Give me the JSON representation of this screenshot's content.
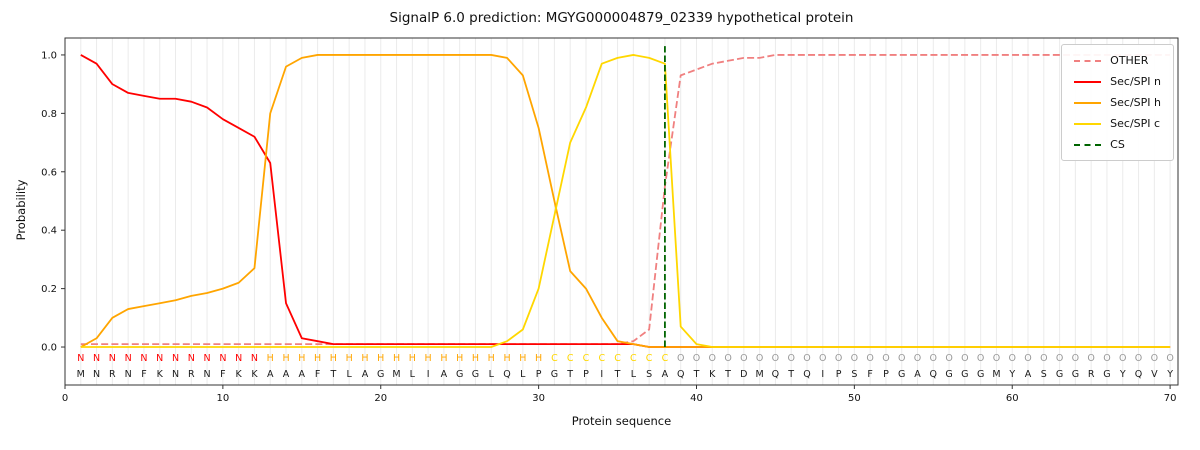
{
  "chart_data": {
    "type": "line",
    "title": "SignalP 6.0 prediction: MGYG000004879_02339 hypothetical protein",
    "xlabel": "Protein sequence",
    "ylabel": "Probability",
    "xlim": [
      0,
      70.5
    ],
    "ylim": [
      -0.13,
      1.058
    ],
    "xticks": [
      0,
      10,
      20,
      30,
      40,
      50,
      60,
      70
    ],
    "yticks": [
      0.0,
      0.2,
      0.4,
      0.6,
      0.8,
      1.0
    ],
    "grid": "light vertical gridline at every residue position",
    "legend_position": "top-right",
    "x_start": 1,
    "sequence": "MNRNFKNRNFKKAAAFTLAGMLIAGGLQLPGTPITLSAQTKTDMQTQIPSFPGAQGGGMYASGGRGYQVY",
    "regions": "NNNNNNNNNNNNHHHHHHHHHHHHHHHHHHCCCCCCCCOOOOOOOOOOOOOOOOOOOOOOOOOOOOOOOO",
    "region_colors": {
      "N": "#ff0000",
      "H": "#ffa500",
      "C": "#ffd700",
      "O": "#999999"
    },
    "sequence_color": "#1a1a1a",
    "series": [
      {
        "name": "OTHER",
        "color": "#f08080",
        "dashed": true,
        "values": [
          0.01,
          0.01,
          0.01,
          0.01,
          0.01,
          0.01,
          0.01,
          0.01,
          0.01,
          0.01,
          0.01,
          0.01,
          0.01,
          0.01,
          0.01,
          0.01,
          0.01,
          0.01,
          0.01,
          0.01,
          0.01,
          0.01,
          0.01,
          0.01,
          0.01,
          0.01,
          0.01,
          0.01,
          0.01,
          0.01,
          0.01,
          0.01,
          0.01,
          0.01,
          0.01,
          0.02,
          0.06,
          0.55,
          0.93,
          0.95,
          0.97,
          0.98,
          0.99,
          0.99,
          1.0,
          1.0,
          1.0,
          1.0,
          1.0,
          1.0,
          1.0,
          1.0,
          1.0,
          1.0,
          1.0,
          1.0,
          1.0,
          1.0,
          1.0,
          1.0,
          1.0,
          1.0,
          1.0,
          1.0,
          1.0,
          1.0,
          1.0,
          1.0,
          1.0,
          1.0
        ]
      },
      {
        "name": "Sec/SPI n",
        "color": "#ff0000",
        "dashed": false,
        "values": [
          1.0,
          0.97,
          0.9,
          0.87,
          0.86,
          0.85,
          0.85,
          0.84,
          0.82,
          0.78,
          0.75,
          0.72,
          0.63,
          0.15,
          0.03,
          0.02,
          0.01,
          0.01,
          0.01,
          0.01,
          0.01,
          0.01,
          0.01,
          0.01,
          0.01,
          0.01,
          0.01,
          0.01,
          0.01,
          0.01,
          0.01,
          0.01,
          0.01,
          0.01,
          0.01,
          0.01,
          0.0,
          0.0,
          0.0,
          0.0,
          0.0,
          0.0,
          0.0,
          0.0,
          0.0,
          0.0,
          0.0,
          0.0,
          0.0,
          0.0,
          0.0,
          0.0,
          0.0,
          0.0,
          0.0,
          0.0,
          0.0,
          0.0,
          0.0,
          0.0,
          0.0,
          0.0,
          0.0,
          0.0,
          0.0,
          0.0,
          0.0,
          0.0,
          0.0,
          0.0
        ]
      },
      {
        "name": "Sec/SPI h",
        "color": "#ffa500",
        "dashed": false,
        "values": [
          0.0,
          0.03,
          0.1,
          0.13,
          0.14,
          0.15,
          0.16,
          0.175,
          0.185,
          0.2,
          0.22,
          0.27,
          0.8,
          0.96,
          0.99,
          1.0,
          1.0,
          1.0,
          1.0,
          1.0,
          1.0,
          1.0,
          1.0,
          1.0,
          1.0,
          1.0,
          1.0,
          0.99,
          0.93,
          0.75,
          0.5,
          0.26,
          0.2,
          0.1,
          0.02,
          0.01,
          0.0,
          0.0,
          0.0,
          0.0,
          0.0,
          0.0,
          0.0,
          0.0,
          0.0,
          0.0,
          0.0,
          0.0,
          0.0,
          0.0,
          0.0,
          0.0,
          0.0,
          0.0,
          0.0,
          0.0,
          0.0,
          0.0,
          0.0,
          0.0,
          0.0,
          0.0,
          0.0,
          0.0,
          0.0,
          0.0,
          0.0,
          0.0,
          0.0,
          0.0
        ]
      },
      {
        "name": "Sec/SPI c",
        "color": "#ffd700",
        "dashed": false,
        "values": [
          0.0,
          0.0,
          0.0,
          0.0,
          0.0,
          0.0,
          0.0,
          0.0,
          0.0,
          0.0,
          0.0,
          0.0,
          0.0,
          0.0,
          0.0,
          0.0,
          0.0,
          0.0,
          0.0,
          0.0,
          0.0,
          0.0,
          0.0,
          0.0,
          0.0,
          0.0,
          0.0,
          0.02,
          0.06,
          0.2,
          0.45,
          0.7,
          0.82,
          0.97,
          0.99,
          1.0,
          0.99,
          0.97,
          0.07,
          0.01,
          0.0,
          0.0,
          0.0,
          0.0,
          0.0,
          0.0,
          0.0,
          0.0,
          0.0,
          0.0,
          0.0,
          0.0,
          0.0,
          0.0,
          0.0,
          0.0,
          0.0,
          0.0,
          0.0,
          0.0,
          0.0,
          0.0,
          0.0,
          0.0,
          0.0,
          0.0,
          0.0,
          0.0,
          0.0,
          0.0
        ]
      }
    ],
    "cs": {
      "label": "CS",
      "x": 38,
      "color": "#006400",
      "dashed": true
    }
  }
}
